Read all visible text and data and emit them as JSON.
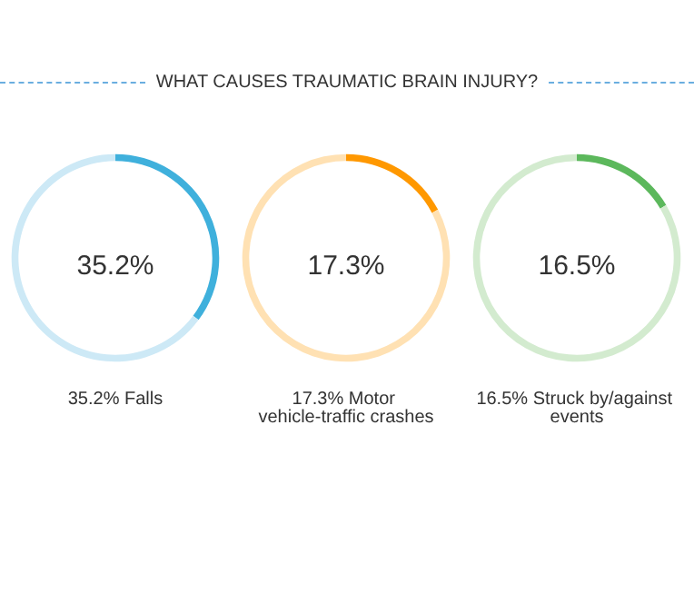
{
  "chart_data": [
    {
      "type": "donut",
      "title": "WHAT CAUSES TRAUMATIC BRAIN INJURY?",
      "categories": [
        null,
        null
      ],
      "values": [
        35.2,
        64.8
      ],
      "annotations": [
        "35.2%",
        "35.2% Falls"
      ],
      "colors": [
        "#3fb0dc",
        "#cde9f6"
      ]
    },
    {
      "type": "donut",
      "categories": [
        null,
        null
      ],
      "values": [
        17.3,
        82.7
      ],
      "annotations": [
        "17.3%",
        "17.3% Motor vehicle-traffic crashes"
      ],
      "colors": [
        "#ff9800",
        "#ffe1b3"
      ]
    },
    {
      "type": "donut",
      "categories": [
        null,
        null
      ],
      "values": [
        16.5,
        83.5
      ],
      "annotations": [
        "16.5%",
        "16.5% Struck by/against events"
      ],
      "colors": [
        "#5cb85c",
        "#d3ebcf"
      ]
    }
  ]
}
